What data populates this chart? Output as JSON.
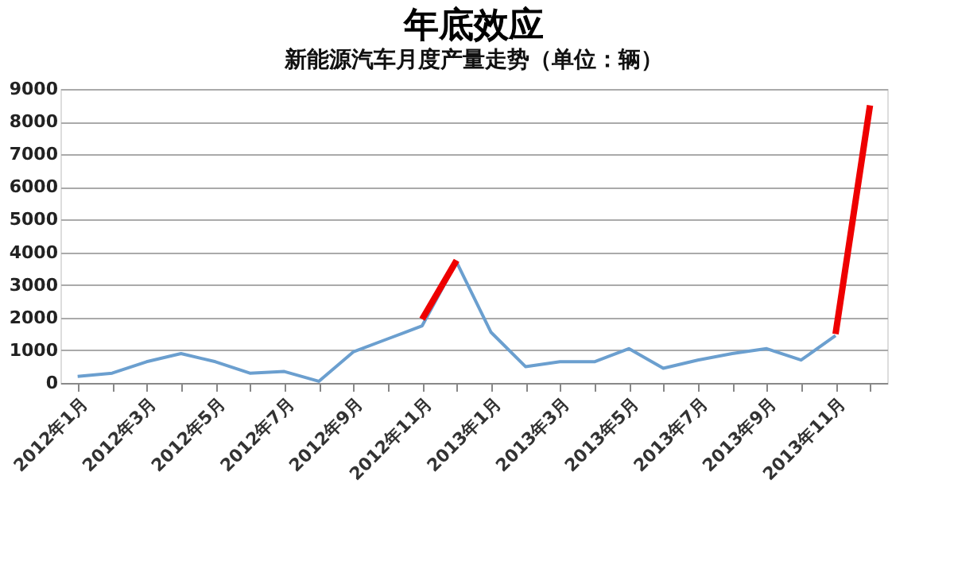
{
  "chart_data": {
    "type": "line",
    "title": "年底效应",
    "subtitle": "新能源汽车月度产量走势（单位：辆）",
    "categories": [
      "2012年1月",
      null,
      "2012年3月",
      null,
      "2012年5月",
      null,
      "2012年7月",
      null,
      "2012年9月",
      null,
      "2012年11月",
      null,
      "2013年1月",
      null,
      "2013年3月",
      null,
      "2013年5月",
      null,
      "2013年7月",
      null,
      "2013年9月",
      null,
      "2013年11月",
      null
    ],
    "series": [
      {
        "color": "#6b9fcf",
        "values": [
          200,
          300,
          650,
          900,
          650,
          300,
          350,
          50,
          950,
          1350,
          1750,
          3700,
          1550,
          500,
          650,
          650,
          1050,
          450,
          700,
          900,
          1050,
          700,
          1450,
          null
        ]
      },
      {
        "color": "#ee0000",
        "values": [
          null,
          null,
          null,
          null,
          null,
          null,
          null,
          null,
          null,
          null,
          1950,
          3750,
          null,
          null,
          null,
          null,
          null,
          null,
          null,
          null,
          null,
          null,
          1500,
          8500
        ]
      }
    ],
    "ylim": [
      0,
      9000
    ],
    "yticks": [
      0,
      1000,
      2000,
      3000,
      4000,
      5000,
      6000,
      7000,
      8000,
      9000
    ],
    "grid": "y"
  }
}
